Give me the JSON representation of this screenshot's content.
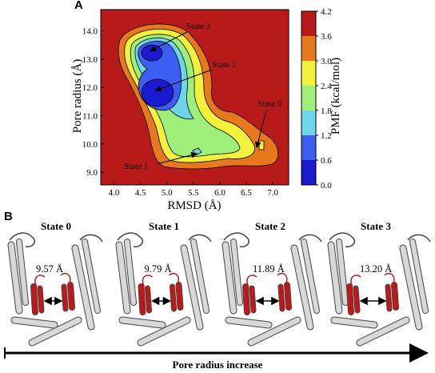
{
  "panel_a": {
    "letter": "A",
    "chart_data": {
      "type": "heatmap",
      "xlabel": "RMSD (Å)",
      "ylabel": "Pore radius (Å)",
      "xlim": [
        3.75,
        7.3
      ],
      "ylim": [
        8.55,
        14.75
      ],
      "xticks": [
        "4.0",
        "4.5",
        "5.0",
        "5.5",
        "6.0",
        "6.5",
        "7.0"
      ],
      "yticks": [
        "9.0",
        "10.0",
        "11.0",
        "12.0",
        "13.0",
        "14.0"
      ],
      "colorbar": {
        "label": "PMF (kcal/mol)",
        "ticks": [
          "0.0",
          "0.6",
          "1.2",
          "1.8",
          "2.4",
          "3.0",
          "3.6",
          "4.2"
        ],
        "range": [
          0.0,
          4.2
        ]
      },
      "levels": [
        {
          "min": 0.0,
          "max": 0.6,
          "color": "#1a1ad0"
        },
        {
          "min": 0.6,
          "max": 1.2,
          "color": "#3d5ef2"
        },
        {
          "min": 1.2,
          "max": 1.8,
          "color": "#6ed6e8"
        },
        {
          "min": 1.8,
          "max": 2.4,
          "color": "#9ef07a"
        },
        {
          "min": 2.4,
          "max": 3.0,
          "color": "#f2f23c"
        },
        {
          "min": 3.0,
          "max": 3.6,
          "color": "#e8781e"
        },
        {
          "min": 3.6,
          "max": 4.2,
          "color": "#b81a1a"
        }
      ],
      "annotations": [
        {
          "text": "State 3",
          "x": 4.7,
          "y": 13.3
        },
        {
          "text": "State 2",
          "x": 4.8,
          "y": 11.9
        },
        {
          "text": "State 1",
          "x": 5.55,
          "y": 9.65
        },
        {
          "text": "State 0",
          "x": 6.7,
          "y": 9.9
        }
      ]
    }
  },
  "panel_b": {
    "letter": "B",
    "states": [
      {
        "title": "State 0",
        "distance": "9.57 Å"
      },
      {
        "title": "State 1",
        "distance": "9.79 Å"
      },
      {
        "title": "State 2",
        "distance": "11.89 Å"
      },
      {
        "title": "State 3",
        "distance": "13.20 Å"
      }
    ],
    "arrow_label": "Pore radius increase"
  },
  "colors": {
    "helix_red": "#c01818",
    "protein_gray": "#d8d8d8",
    "outline": "#444444"
  }
}
